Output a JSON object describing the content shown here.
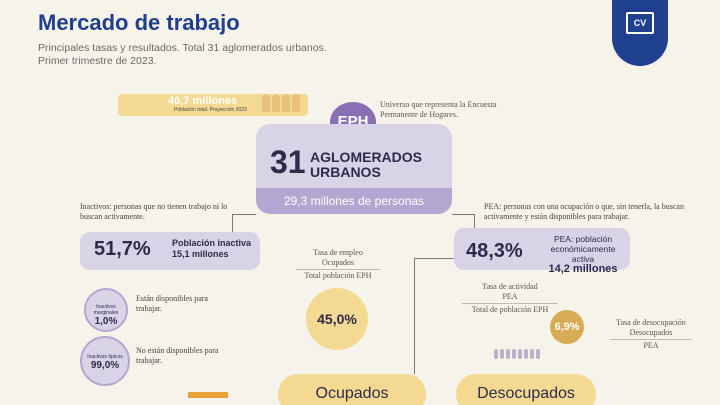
{
  "header": {
    "title": "Mercado de trabajo",
    "subtitle_1": "Principales tasas y resultados. Total 31 aglomerados urbanos.",
    "subtitle_2": "Primer trimestre de 2023."
  },
  "logo": {
    "icon": "cv-document-icon",
    "text": "CV"
  },
  "population": {
    "value": "46,7 millones",
    "caption": "Población total. Proyección 2023"
  },
  "eph": {
    "badge": "EPH",
    "note": "Universo que representa la Encuesta Permanente de Hogares."
  },
  "aglomerados": {
    "number": "31",
    "label_1": "AGLOMERADOS",
    "label_2": "URBANOS",
    "persons": "29,3 millones de personas"
  },
  "inactivos": {
    "definition": "Inactivos: personas que no tienen trabajo ni lo buscan activamente.",
    "pct": "51,7%",
    "label": "Población inactiva",
    "value": "15,1 millones"
  },
  "pea": {
    "definition": "PEA: personas con una ocupación o que, sin tenerla, la buscan activamente y están disponibles para trabajar.",
    "pct": "48,3%",
    "label": "PEA: población económicamente activa",
    "value": "14,2 millones"
  },
  "marginales": {
    "caption": "Inactivos marginales",
    "value": "1,0%",
    "note": "Están disponibles para trabajar."
  },
  "tipicos": {
    "caption": "Inactivos típicos",
    "value": "99,0%",
    "note": "No están disponibles para trabajar."
  },
  "empleo": {
    "title": "Tasa de empleo",
    "num": "Ocupados",
    "den": "Total población EPH",
    "value": "45,0%"
  },
  "actividad": {
    "title": "Tasa de actividad",
    "num": "PEA",
    "den": "Total de población EPH"
  },
  "desocupacion": {
    "title": "Tasa de desocupación",
    "num": "Desocupados",
    "den": "PEA",
    "value": "6,9%"
  },
  "ocupados_label": "Ocupados",
  "desocupados_label": "Desocupados"
}
